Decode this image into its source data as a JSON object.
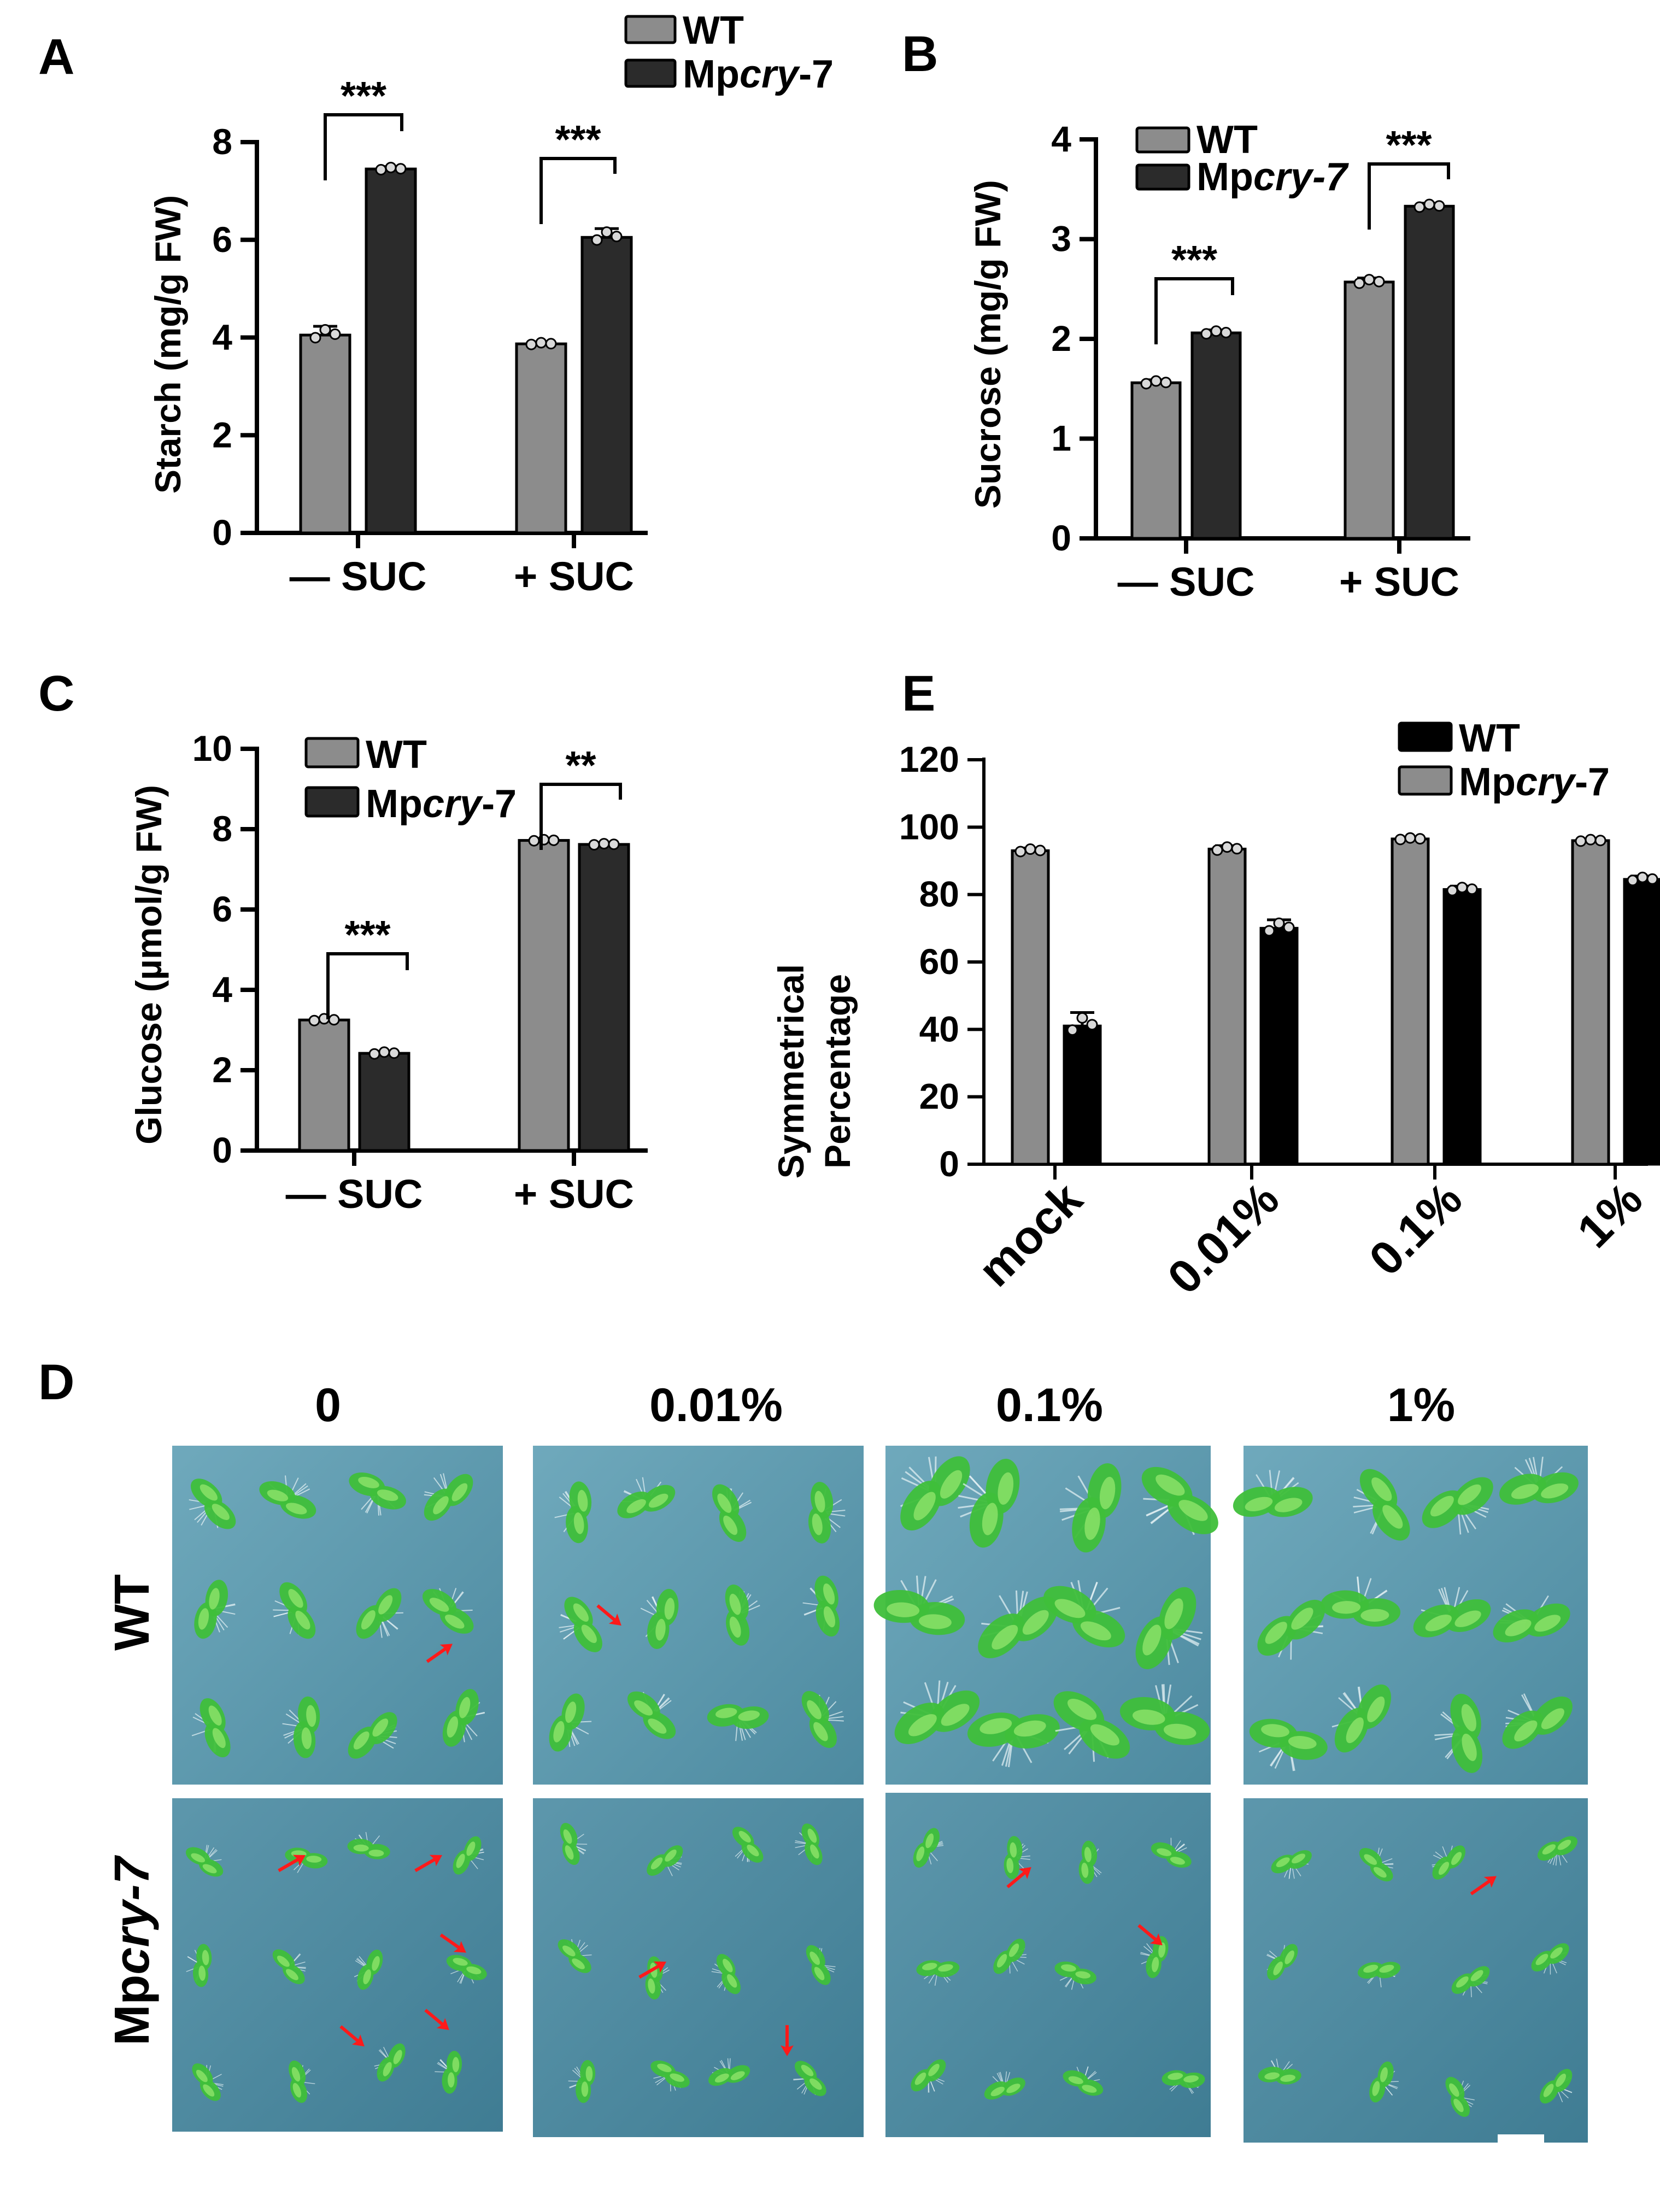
{
  "colors": {
    "wt_gray": "#8c8c8c",
    "mut_dark": "#2b2b2b",
    "black": "#000000",
    "dot": "#d9d9d9",
    "plate_bg": "#4f8fa6",
    "plate_bg2": "#6aa4b8",
    "seedling": "#3fbf3a",
    "seedling_light": "#8fe36a",
    "arrow_red": "#ff1a1a"
  },
  "chart_data": [
    {
      "id": "A",
      "panel_label": "A",
      "type": "bar",
      "ylabel": "Starch (mg/g FW)",
      "ylim": [
        0,
        8
      ],
      "yticks": [
        "0",
        "2",
        "4",
        "6",
        "8"
      ],
      "yticks_values": [
        0,
        2,
        4,
        6,
        8
      ],
      "categories": [
        "—  SUC",
        "+ SUC"
      ],
      "series": [
        {
          "name": "WT",
          "color_key": "wt_gray",
          "values": [
            4.05,
            3.87
          ],
          "errors": [
            0.18,
            0.04
          ]
        },
        {
          "name": "Mpcry-7",
          "color_key": "mut_dark",
          "values": [
            7.45,
            6.05
          ],
          "errors": [
            0.05,
            0.18
          ]
        }
      ],
      "legend": [
        {
          "prefix": "WT",
          "italic": "",
          "suffix": ""
        },
        {
          "prefix": "Mp",
          "italic": "cry",
          "suffix": "-7"
        }
      ],
      "legend_position": "top-right",
      "significance": [
        "***",
        "***"
      ]
    },
    {
      "id": "B",
      "panel_label": "B",
      "type": "bar",
      "ylabel": "Sucrose (mg/g FW)",
      "ylim": [
        0,
        4
      ],
      "yticks": [
        "0",
        "1",
        "2",
        "3",
        "4"
      ],
      "yticks_values": [
        0,
        1,
        2,
        3,
        4
      ],
      "categories": [
        "—  SUC",
        "+ SUC"
      ],
      "series": [
        {
          "name": "WT",
          "color_key": "wt_gray",
          "values": [
            1.56,
            2.57
          ],
          "errors": [
            0.03,
            0.04
          ]
        },
        {
          "name": "Mpcry-7",
          "color_key": "mut_dark",
          "values": [
            2.06,
            3.33
          ],
          "errors": [
            0.03,
            0.03
          ]
        }
      ],
      "legend": [
        {
          "prefix": "WT",
          "italic": "",
          "suffix": ""
        },
        {
          "prefix": "Mp",
          "italic": "cry-7",
          "suffix": ""
        }
      ],
      "legend_position": "top-left",
      "significance": [
        "***",
        "***"
      ]
    },
    {
      "id": "C",
      "panel_label": "C",
      "type": "bar",
      "ylabel": "Glucose (µmol/g FW)",
      "ylim": [
        0,
        10
      ],
      "yticks": [
        "0",
        "2",
        "4",
        "6",
        "8",
        "10"
      ],
      "yticks_values": [
        0,
        2,
        4,
        6,
        8,
        10
      ],
      "categories": [
        "—  SUC",
        "+ SUC"
      ],
      "series": [
        {
          "name": "WT",
          "color_key": "wt_gray",
          "values": [
            3.25,
            7.72
          ],
          "errors": [
            0.05,
            0.03
          ]
        },
        {
          "name": "Mpcry-7",
          "color_key": "mut_dark",
          "values": [
            2.42,
            7.62
          ],
          "errors": [
            0.05,
            0.03
          ]
        }
      ],
      "legend": [
        {
          "prefix": "WT",
          "italic": "",
          "suffix": ""
        },
        {
          "prefix": "Mp",
          "italic": "cry",
          "suffix": "-7"
        }
      ],
      "legend_position": "top-left",
      "significance": [
        "***",
        "**"
      ]
    },
    {
      "id": "E",
      "panel_label": "E",
      "type": "bar",
      "ylabel_lines": [
        "Symmetrical",
        "Percentage"
      ],
      "ylim": [
        0,
        120
      ],
      "yticks": [
        "0",
        "20",
        "40",
        "60",
        "80",
        "100",
        "120"
      ],
      "yticks_values": [
        0,
        20,
        40,
        60,
        80,
        100,
        120
      ],
      "categories": [
        "mock",
        "0.01%",
        "0.1%",
        "1%"
      ],
      "series": [
        {
          "name": "Mpcry-7",
          "color_key": "wt_gray",
          "values": [
            93,
            93.5,
            96.5,
            96
          ],
          "errors": [
            0.8,
            1.0,
            0.5,
            0.5
          ]
        },
        {
          "name": "WT",
          "color_key": "black",
          "values": [
            41,
            70,
            81.5,
            84.5
          ],
          "errors": [
            4.0,
            2.5,
            1.0,
            1.0
          ]
        }
      ],
      "legend": [
        {
          "prefix": "WT",
          "italic": "",
          "suffix": ""
        },
        {
          "prefix": "Mp",
          "italic": "cry",
          "suffix": "-7"
        }
      ],
      "legend_position": "top-right"
    }
  ],
  "panel_d": {
    "panel_label": "D",
    "column_labels": [
      "0",
      "0.01%",
      "0.1%",
      "1%"
    ],
    "row_labels": [
      {
        "prefix": "WT",
        "italic": "",
        "suffix": ""
      },
      {
        "prefix": "Mp",
        "italic": "cry-7",
        "suffix": ""
      }
    ]
  }
}
